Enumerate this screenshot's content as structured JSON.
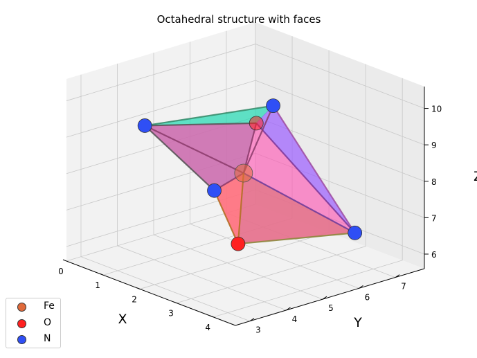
{
  "chart_data": {
    "type": "scatter3d",
    "title": "Octahedral structure with faces",
    "xlabel": "X",
    "ylabel": "Y",
    "zlabel": "Z",
    "xlim": [
      0,
      4.6
    ],
    "ylim": [
      2.6,
      7.8
    ],
    "zlim": [
      5.6,
      10.6
    ],
    "x_ticks": [
      0,
      1,
      2,
      3,
      4
    ],
    "y_ticks": [
      3,
      4,
      5,
      6,
      7
    ],
    "z_ticks": [
      6,
      7,
      8,
      9,
      10
    ],
    "view": {
      "elev": 20,
      "azim": -35
    },
    "grid": true,
    "legend_position": "lower-left",
    "series": [
      {
        "name": "Fe",
        "color": "#e06a3b",
        "points": [
          {
            "x": 2.25,
            "y": 5.2,
            "z": 8.1
          }
        ]
      },
      {
        "name": "O",
        "color": "#ff2020",
        "points": [
          {
            "x": 2.1,
            "y": 5.2,
            "z": 6.1
          },
          {
            "x": 2.3,
            "y": 5.5,
            "z": 9.4
          }
        ]
      },
      {
        "name": "N",
        "color": "#2f4ff5",
        "points": [
          {
            "x": 0.55,
            "y": 4.2,
            "z": 9.05
          },
          {
            "x": 3.55,
            "y": 4.7,
            "z": 10.6
          },
          {
            "x": 1.65,
            "y": 5.0,
            "z": 7.45
          },
          {
            "x": 3.5,
            "y": 7.0,
            "z": 6.4
          }
        ]
      }
    ],
    "faces": [
      {
        "color": "#1fd9b0",
        "opacity": 0.7
      },
      {
        "color": "#ff4fb0",
        "opacity": 0.6
      },
      {
        "color": "#9b5cff",
        "opacity": 0.7
      },
      {
        "color": "#ffb020",
        "opacity": 0.8
      },
      {
        "color": "#b5b24a",
        "opacity": 0.8
      },
      {
        "color": "#5fa8a8",
        "opacity": 0.7
      }
    ]
  }
}
